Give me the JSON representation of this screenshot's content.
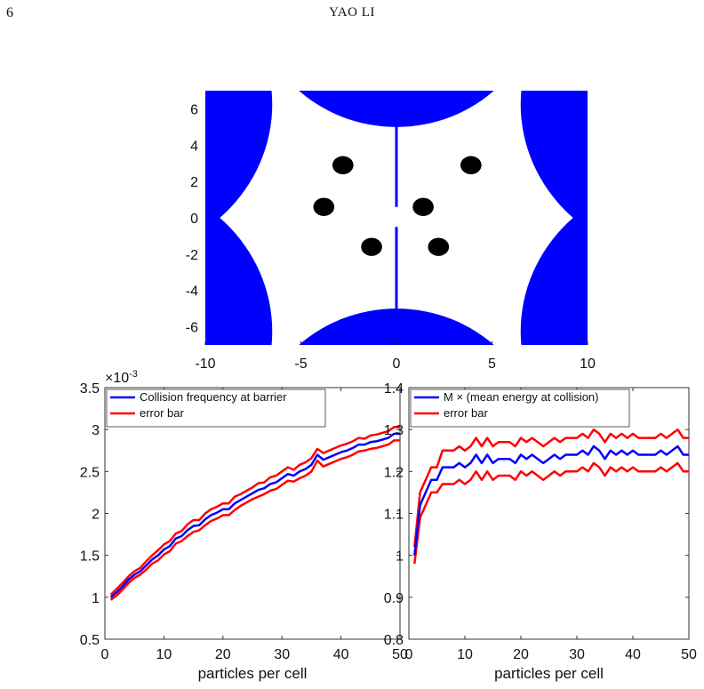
{
  "header": {
    "page_number": "6",
    "running_title": "YAO LI"
  },
  "chart_data": [
    {
      "type": "scatter",
      "panel": "domain",
      "xlim": [
        -10,
        10
      ],
      "ylim": [
        -7,
        7
      ],
      "xticks": [
        -10,
        -5,
        0,
        5,
        10
      ],
      "yticks": [
        6,
        4,
        2,
        0,
        -2,
        -4,
        -6
      ],
      "colors": {
        "wall": "#0000ff",
        "particle": "#000000",
        "background": "#ffffff"
      },
      "scatterers": [
        {
          "cx": 0,
          "cy": 12.5,
          "r": 7.5
        },
        {
          "cx": 0,
          "cy": -12.5,
          "r": 7.5
        },
        {
          "cx": 15,
          "cy": 6.25,
          "r": 8.5
        },
        {
          "cx": 15,
          "cy": -6.25,
          "r": 8.5
        },
        {
          "cx": -15,
          "cy": 6.25,
          "r": 8.5
        },
        {
          "cx": -15,
          "cy": -6.25,
          "r": 8.5
        }
      ],
      "barrier": [
        {
          "x": 0,
          "y1": 0.6,
          "y2": 5.1
        },
        {
          "x": 0,
          "y1": -0.5,
          "y2": -5.1
        }
      ],
      "particles": [
        {
          "x": -2.8,
          "y": 2.9
        },
        {
          "x": 3.9,
          "y": 2.9
        },
        {
          "x": -3.8,
          "y": 0.6
        },
        {
          "x": 1.4,
          "y": 0.6
        },
        {
          "x": -1.3,
          "y": -1.6
        },
        {
          "x": 2.2,
          "y": -1.6
        }
      ],
      "particle_radius": [
        0.55,
        0.5
      ]
    },
    {
      "type": "line",
      "panel": "collision-frequency",
      "xlabel": "particles per cell",
      "xlim": [
        0,
        50
      ],
      "ylim": [
        0.5,
        3.5
      ],
      "xticks": [
        0,
        10,
        20,
        30,
        40,
        50
      ],
      "yticks": [
        0.5,
        1,
        1.5,
        2,
        2.5,
        3,
        3.5
      ],
      "y_exponent": "×10-3",
      "legend_position": "top-left",
      "x": [
        1,
        2,
        3,
        4,
        5,
        6,
        7,
        8,
        9,
        10,
        11,
        12,
        13,
        14,
        15,
        16,
        17,
        18,
        19,
        20,
        21,
        22,
        23,
        24,
        25,
        26,
        27,
        28,
        29,
        30,
        31,
        32,
        33,
        34,
        35,
        36,
        37,
        38,
        39,
        40,
        41,
        42,
        43,
        44,
        45,
        46,
        47,
        48,
        49,
        50
      ],
      "series": [
        {
          "name": "Collision frequency at barrier",
          "color": "#0000ff",
          "values": [
            1.0,
            1.06,
            1.13,
            1.21,
            1.27,
            1.31,
            1.38,
            1.45,
            1.5,
            1.57,
            1.61,
            1.7,
            1.73,
            1.8,
            1.85,
            1.86,
            1.93,
            1.98,
            2.01,
            2.05,
            2.05,
            2.12,
            2.16,
            2.2,
            2.24,
            2.28,
            2.3,
            2.35,
            2.37,
            2.42,
            2.47,
            2.45,
            2.5,
            2.53,
            2.58,
            2.7,
            2.64,
            2.67,
            2.7,
            2.73,
            2.75,
            2.78,
            2.82,
            2.82,
            2.85,
            2.86,
            2.88,
            2.9,
            2.95,
            2.95
          ]
        },
        {
          "name": "error bar",
          "color": "#ff0000",
          "values": [
            1.03,
            1.1,
            1.17,
            1.25,
            1.31,
            1.35,
            1.43,
            1.5,
            1.56,
            1.63,
            1.67,
            1.76,
            1.79,
            1.87,
            1.92,
            1.92,
            2.0,
            2.05,
            2.08,
            2.12,
            2.12,
            2.2,
            2.23,
            2.27,
            2.31,
            2.36,
            2.37,
            2.43,
            2.45,
            2.5,
            2.55,
            2.52,
            2.58,
            2.61,
            2.66,
            2.77,
            2.72,
            2.75,
            2.78,
            2.81,
            2.83,
            2.86,
            2.9,
            2.89,
            2.93,
            2.94,
            2.96,
            2.98,
            3.03,
            3.03
          ]
        },
        {
          "name": "error bar",
          "color": "#ff0000",
          "values": [
            0.97,
            1.02,
            1.09,
            1.17,
            1.23,
            1.27,
            1.33,
            1.4,
            1.44,
            1.51,
            1.55,
            1.64,
            1.67,
            1.73,
            1.78,
            1.8,
            1.86,
            1.91,
            1.94,
            1.98,
            1.98,
            2.04,
            2.09,
            2.13,
            2.17,
            2.2,
            2.23,
            2.27,
            2.29,
            2.34,
            2.39,
            2.38,
            2.42,
            2.45,
            2.5,
            2.63,
            2.56,
            2.59,
            2.62,
            2.65,
            2.67,
            2.7,
            2.74,
            2.75,
            2.77,
            2.78,
            2.8,
            2.82,
            2.87,
            2.87
          ]
        }
      ]
    },
    {
      "type": "line",
      "panel": "mean-energy",
      "xlabel": "particles per cell",
      "xlim": [
        0,
        50
      ],
      "ylim": [
        0.8,
        1.4
      ],
      "xticks": [
        0,
        10,
        20,
        30,
        40,
        50
      ],
      "yticks": [
        0.8,
        0.9,
        1,
        1.1,
        1.2,
        1.3,
        1.4
      ],
      "legend_position": "top-left",
      "x": [
        1,
        2,
        3,
        4,
        5,
        6,
        7,
        8,
        9,
        10,
        11,
        12,
        13,
        14,
        15,
        16,
        17,
        18,
        19,
        20,
        21,
        22,
        23,
        24,
        25,
        26,
        27,
        28,
        29,
        30,
        31,
        32,
        33,
        34,
        35,
        36,
        37,
        38,
        39,
        40,
        41,
        42,
        43,
        44,
        45,
        46,
        47,
        48,
        49,
        50
      ],
      "series": [
        {
          "name": "M × (mean energy at collision)",
          "color": "#0000ff",
          "values": [
            1.0,
            1.12,
            1.15,
            1.18,
            1.18,
            1.21,
            1.21,
            1.21,
            1.22,
            1.21,
            1.22,
            1.24,
            1.22,
            1.24,
            1.22,
            1.23,
            1.23,
            1.23,
            1.22,
            1.24,
            1.23,
            1.24,
            1.23,
            1.22,
            1.23,
            1.24,
            1.23,
            1.24,
            1.24,
            1.24,
            1.25,
            1.24,
            1.26,
            1.25,
            1.23,
            1.25,
            1.24,
            1.25,
            1.24,
            1.25,
            1.24,
            1.24,
            1.24,
            1.24,
            1.25,
            1.24,
            1.25,
            1.26,
            1.24,
            1.24
          ]
        },
        {
          "name": "error bar",
          "color": "#ff0000",
          "values": [
            1.02,
            1.15,
            1.18,
            1.21,
            1.21,
            1.25,
            1.25,
            1.25,
            1.26,
            1.25,
            1.26,
            1.28,
            1.26,
            1.28,
            1.26,
            1.27,
            1.27,
            1.27,
            1.26,
            1.28,
            1.27,
            1.28,
            1.27,
            1.26,
            1.27,
            1.28,
            1.27,
            1.28,
            1.28,
            1.28,
            1.29,
            1.28,
            1.3,
            1.29,
            1.27,
            1.29,
            1.28,
            1.29,
            1.28,
            1.29,
            1.28,
            1.28,
            1.28,
            1.28,
            1.29,
            1.28,
            1.29,
            1.3,
            1.28,
            1.28
          ]
        },
        {
          "name": "error bar",
          "color": "#ff0000",
          "values": [
            0.98,
            1.09,
            1.12,
            1.15,
            1.15,
            1.17,
            1.17,
            1.17,
            1.18,
            1.17,
            1.18,
            1.2,
            1.18,
            1.2,
            1.18,
            1.19,
            1.19,
            1.19,
            1.18,
            1.2,
            1.19,
            1.2,
            1.19,
            1.18,
            1.19,
            1.2,
            1.19,
            1.2,
            1.2,
            1.2,
            1.21,
            1.2,
            1.22,
            1.21,
            1.19,
            1.21,
            1.2,
            1.21,
            1.2,
            1.21,
            1.2,
            1.2,
            1.2,
            1.2,
            1.21,
            1.2,
            1.21,
            1.22,
            1.2,
            1.2
          ]
        }
      ]
    }
  ]
}
